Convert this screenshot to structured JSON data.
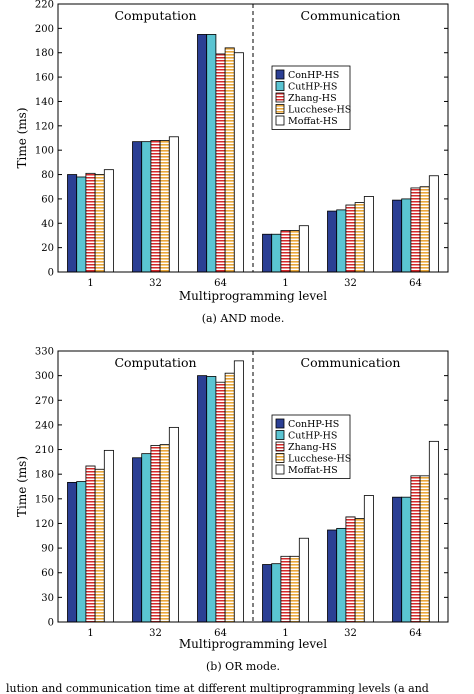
{
  "chart_data": [
    {
      "type": "bar",
      "panel": "top",
      "sections": [
        "Computation",
        "Communication"
      ],
      "categories": [
        "1",
        "32",
        "64"
      ],
      "xlabel": "Multiprogramming level",
      "ylabel": "Time (ms)",
      "ylim": [
        0,
        220
      ],
      "yticks": [
        0,
        20,
        40,
        60,
        80,
        100,
        120,
        140,
        160,
        180,
        200,
        220
      ],
      "caption": "(a) AND mode.",
      "legend_position": "right, within Communication section",
      "series": [
        {
          "name": "ConHP-HS",
          "computation": [
            80,
            107,
            195
          ],
          "communication": [
            31,
            50,
            59
          ]
        },
        {
          "name": "CutHP-HS",
          "computation": [
            78,
            107,
            195
          ],
          "communication": [
            31,
            51,
            60
          ]
        },
        {
          "name": "Zhang-HS",
          "computation": [
            81,
            108,
            179
          ],
          "communication": [
            34,
            55,
            69
          ]
        },
        {
          "name": "Lucchese-HS",
          "computation": [
            80,
            108,
            184
          ],
          "communication": [
            34,
            57,
            70
          ]
        },
        {
          "name": "Moffat-HS",
          "computation": [
            84,
            111,
            180
          ],
          "communication": [
            38,
            62,
            79
          ]
        }
      ]
    },
    {
      "type": "bar",
      "panel": "bottom",
      "sections": [
        "Computation",
        "Communication"
      ],
      "categories": [
        "1",
        "32",
        "64"
      ],
      "xlabel": "Multiprogramming level",
      "ylabel": "Time (ms)",
      "ylim": [
        0,
        330
      ],
      "yticks": [
        0,
        30,
        60,
        90,
        120,
        150,
        180,
        210,
        240,
        270,
        300,
        330
      ],
      "caption": "(b) OR mode.",
      "legend_position": "right, within Communication section",
      "series": [
        {
          "name": "ConHP-HS",
          "computation": [
            170,
            200,
            300
          ],
          "communication": [
            70,
            112,
            152
          ]
        },
        {
          "name": "CutHP-HS",
          "computation": [
            171,
            205,
            299
          ],
          "communication": [
            71,
            114,
            152
          ]
        },
        {
          "name": "Zhang-HS",
          "computation": [
            190,
            215,
            292
          ],
          "communication": [
            80,
            128,
            178
          ]
        },
        {
          "name": "Lucchese-HS",
          "computation": [
            186,
            216,
            303
          ],
          "communication": [
            80,
            126,
            178
          ]
        },
        {
          "name": "Moffat-HS",
          "computation": [
            209,
            237,
            318
          ],
          "communication": [
            102,
            154,
            220
          ]
        }
      ]
    }
  ],
  "colors": {
    "ConHP-HS": "#2b3f94",
    "CutHP-HS": "#5bc4d2",
    "Zhang-HS": "#d42a2a",
    "Lucchese-HS": "#e9a73a",
    "Moffat-HS": "#ffffff"
  },
  "footer_text": "lution and communication time at different multiprogramming levels (a and"
}
